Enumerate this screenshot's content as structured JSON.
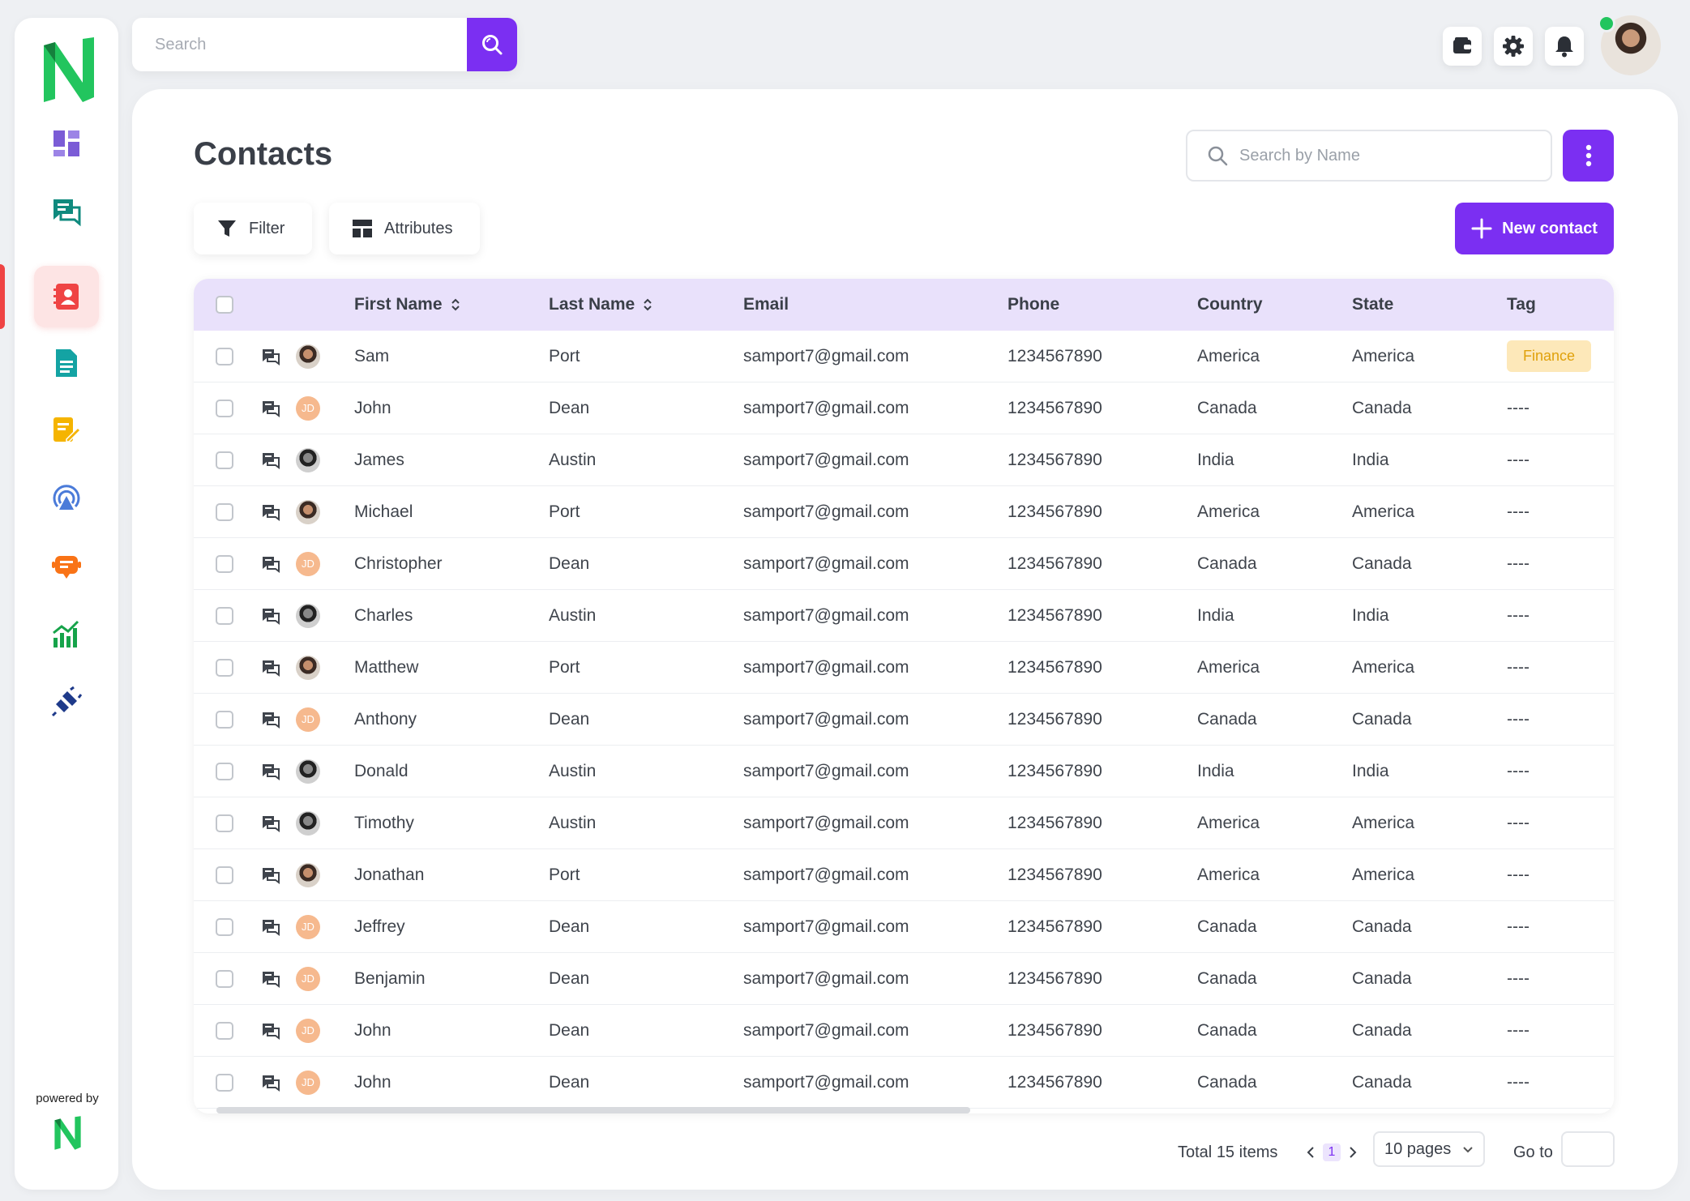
{
  "app": {
    "powered_by": "powered by"
  },
  "topbar": {
    "search_placeholder": "Search"
  },
  "page": {
    "title": "Contacts",
    "name_search_placeholder": "Search by Name",
    "filter_label": "Filter",
    "attributes_label": "Attributes",
    "new_contact_label": "New contact"
  },
  "sidebar": {
    "items": [
      {
        "name": "dashboard",
        "icon": "dashboard-icon",
        "color": "#7b5cd6"
      },
      {
        "name": "conversations",
        "icon": "chat-icon",
        "color": "#0f8a7e"
      },
      {
        "name": "contacts",
        "icon": "contacts-icon",
        "color": "#ef4444",
        "active": true
      },
      {
        "name": "templates",
        "icon": "document-icon",
        "color": "#14a3a3"
      },
      {
        "name": "notes",
        "icon": "notes-icon",
        "color": "#f5b400"
      },
      {
        "name": "broadcast",
        "icon": "broadcast-icon",
        "color": "#4b7bd9"
      },
      {
        "name": "chatbot",
        "icon": "bot-icon",
        "color": "#f97316"
      },
      {
        "name": "analytics",
        "icon": "analytics-icon",
        "color": "#16a34a"
      },
      {
        "name": "integrations",
        "icon": "plug-icon",
        "color": "#1e3a8a"
      }
    ]
  },
  "table": {
    "headers": {
      "first_name": "First Name",
      "last_name": "Last Name",
      "email": "Email",
      "phone": "Phone",
      "country": "Country",
      "state": "State",
      "tag": "Tag"
    },
    "rows": [
      {
        "avatar": "photo",
        "first": "Sam",
        "last": "Port",
        "email": "samport7@gmail.com",
        "phone": "1234567890",
        "country": "America",
        "state": "America",
        "tag": "Finance"
      },
      {
        "avatar": "JD",
        "first": "John",
        "last": "Dean",
        "email": "samport7@gmail.com",
        "phone": "1234567890",
        "country": "Canada",
        "state": "Canada",
        "tag": "----"
      },
      {
        "avatar": "mono",
        "first": "James",
        "last": "Austin",
        "email": "samport7@gmail.com",
        "phone": "1234567890",
        "country": "India",
        "state": "India",
        "tag": "----"
      },
      {
        "avatar": "photo",
        "first": "Michael",
        "last": "Port",
        "email": "samport7@gmail.com",
        "phone": "1234567890",
        "country": "America",
        "state": "America",
        "tag": "----"
      },
      {
        "avatar": "JD",
        "first": "Christopher",
        "last": "Dean",
        "email": "samport7@gmail.com",
        "phone": "1234567890",
        "country": "Canada",
        "state": "Canada",
        "tag": "----"
      },
      {
        "avatar": "mono",
        "first": "Charles",
        "last": "Austin",
        "email": "samport7@gmail.com",
        "phone": "1234567890",
        "country": "India",
        "state": "India",
        "tag": "----"
      },
      {
        "avatar": "photo",
        "first": "Matthew",
        "last": "Port",
        "email": "samport7@gmail.com",
        "phone": "1234567890",
        "country": "America",
        "state": "America",
        "tag": "----"
      },
      {
        "avatar": "JD",
        "first": "Anthony",
        "last": "Dean",
        "email": "samport7@gmail.com",
        "phone": "1234567890",
        "country": "Canada",
        "state": "Canada",
        "tag": "----"
      },
      {
        "avatar": "mono",
        "first": "Donald",
        "last": "Austin",
        "email": "samport7@gmail.com",
        "phone": "1234567890",
        "country": "India",
        "state": "India",
        "tag": "----"
      },
      {
        "avatar": "mono",
        "first": "Timothy",
        "last": "Austin",
        "email": "samport7@gmail.com",
        "phone": "1234567890",
        "country": "America",
        "state": "America",
        "tag": "----"
      },
      {
        "avatar": "photo",
        "first": "Jonathan",
        "last": "Port",
        "email": "samport7@gmail.com",
        "phone": "1234567890",
        "country": "America",
        "state": "America",
        "tag": "----"
      },
      {
        "avatar": "JD",
        "first": "Jeffrey",
        "last": "Dean",
        "email": "samport7@gmail.com",
        "phone": "1234567890",
        "country": "Canada",
        "state": "Canada",
        "tag": "----"
      },
      {
        "avatar": "JD",
        "first": "Benjamin",
        "last": "Dean",
        "email": "samport7@gmail.com",
        "phone": "1234567890",
        "country": "Canada",
        "state": "Canada",
        "tag": "----"
      },
      {
        "avatar": "JD",
        "first": "John",
        "last": "Dean",
        "email": "samport7@gmail.com",
        "phone": "1234567890",
        "country": "Canada",
        "state": "Canada",
        "tag": "----"
      },
      {
        "avatar": "JD",
        "first": "John",
        "last": "Dean",
        "email": "samport7@gmail.com",
        "phone": "1234567890",
        "country": "Canada",
        "state": "Canada",
        "tag": "----"
      }
    ]
  },
  "pagination": {
    "total_prefix": "Total",
    "total_count": "15",
    "total_suffix": "items",
    "current_page": "1",
    "page_size": "10 pages",
    "goto_label": "Go to"
  },
  "colors": {
    "accent": "#7b2ff2",
    "header_bg": "#e9e1fb",
    "logo_green": "#22c55e",
    "tag_finance_bg": "#fde8b9",
    "tag_finance_text": "#e0a10b",
    "online": "#22c55e"
  }
}
